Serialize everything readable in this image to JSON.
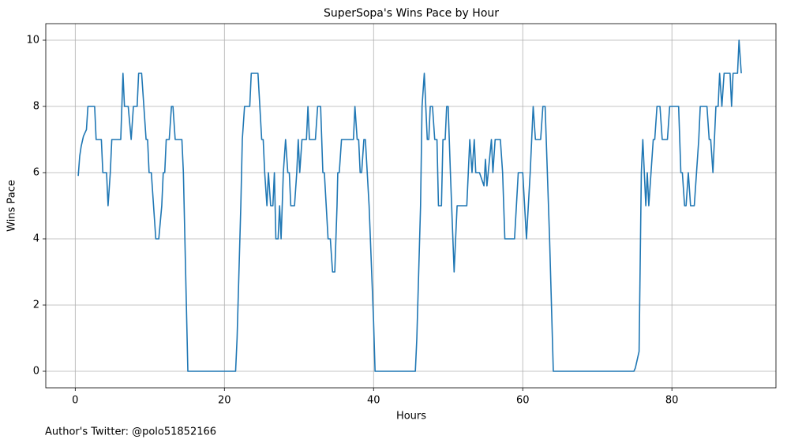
{
  "chart_data": {
    "type": "line",
    "title": "SuperSopa's Wins Pace by Hour",
    "xlabel": "Hours",
    "ylabel": "Wins Pace",
    "annotation": "Author's Twitter: @polo51852166",
    "color": "#1f77b4",
    "grid": true,
    "xlim": [
      -3.95,
      93.95
    ],
    "ylim": [
      -0.5,
      10.5
    ],
    "xticks": [
      0,
      20,
      40,
      60,
      80
    ],
    "yticks": [
      0,
      2,
      4,
      6,
      8,
      10
    ],
    "x": [
      0.4,
      0.6,
      0.8,
      1.1,
      1.5,
      1.7,
      2.6,
      2.8,
      3.5,
      3.7,
      4.2,
      4.4,
      4.7,
      4.9,
      6.1,
      6.4,
      6.6,
      7.1,
      7.5,
      7.8,
      8.3,
      8.5,
      8.9,
      9.5,
      9.7,
      9.9,
      10.2,
      10.8,
      11.2,
      11.6,
      11.8,
      12.0,
      12.2,
      12.6,
      12.9,
      13.1,
      13.4,
      14.3,
      14.5,
      15.1,
      21.5,
      21.7,
      22.2,
      22.4,
      22.7,
      23.4,
      23.6,
      24.5,
      25.0,
      25.2,
      25.4,
      25.7,
      25.9,
      26.2,
      26.5,
      26.7,
      26.9,
      27.2,
      27.4,
      27.6,
      27.9,
      28.2,
      28.5,
      28.7,
      28.9,
      29.4,
      29.7,
      29.9,
      30.1,
      30.4,
      31.0,
      31.2,
      31.4,
      32.2,
      32.5,
      32.9,
      33.2,
      33.4,
      33.9,
      34.2,
      34.5,
      34.8,
      35.1,
      35.2,
      35.4,
      35.7,
      37.3,
      37.5,
      37.8,
      38.0,
      38.2,
      38.4,
      38.7,
      38.9,
      39.4,
      40.0,
      40.2,
      45.6,
      45.8,
      46.3,
      46.5,
      46.8,
      47.2,
      47.4,
      47.6,
      47.9,
      48.2,
      48.5,
      48.7,
      49.1,
      49.3,
      49.6,
      49.8,
      50.0,
      50.3,
      50.8,
      51.2,
      52.5,
      52.9,
      53.2,
      53.5,
      53.7,
      54.2,
      54.8,
      55.0,
      55.2,
      55.8,
      56.0,
      56.3,
      57.0,
      57.3,
      57.6,
      58.9,
      59.4,
      60.0,
      60.5,
      61.0,
      61.4,
      61.7,
      62.4,
      62.7,
      63.0,
      63.6,
      64.1,
      74.9,
      75.1,
      75.6,
      75.9,
      76.1,
      76.5,
      76.7,
      76.9,
      77.2,
      77.5,
      77.7,
      78.0,
      78.4,
      78.7,
      79.4,
      79.7,
      80.9,
      81.2,
      81.4,
      81.7,
      81.9,
      82.2,
      82.5,
      83.0,
      83.3,
      83.6,
      83.8,
      84.7,
      85.0,
      85.2,
      85.5,
      85.7,
      85.9,
      86.2,
      86.4,
      86.7,
      87.0,
      87.8,
      88.0,
      88.2,
      88.8,
      89.0,
      89.3
    ],
    "values": [
      5.9,
      6.5,
      6.8,
      7.1,
      7.3,
      8,
      8,
      7,
      7,
      6,
      6,
      5,
      6,
      7,
      7,
      9,
      8,
      8,
      7,
      8,
      8,
      9,
      9,
      7,
      7,
      6,
      6,
      4,
      4,
      5,
      6,
      6,
      7,
      7,
      8,
      8,
      7,
      7,
      6,
      0,
      0,
      1,
      5,
      7,
      8,
      8,
      9,
      9,
      7,
      7,
      6,
      5,
      6,
      5,
      5,
      6,
      4,
      4,
      5,
      4,
      6,
      7,
      6,
      6,
      5,
      5,
      6,
      7,
      6,
      7,
      7,
      8,
      7,
      7,
      8,
      8,
      6,
      6,
      4,
      4,
      3,
      3,
      5,
      6,
      6,
      7,
      7,
      8,
      7,
      7,
      6,
      6,
      7,
      7,
      5,
      1.5,
      0,
      0,
      1,
      5,
      8,
      9,
      7,
      7,
      8,
      8,
      7,
      7,
      5,
      5,
      7,
      7,
      8,
      8,
      6,
      3,
      5,
      5,
      7,
      6,
      7,
      6,
      6,
      5.6,
      6.4,
      5.6,
      7,
      6,
      7,
      7,
      6,
      4,
      4,
      6,
      6,
      4,
      6,
      8,
      7,
      7,
      8,
      8,
      4,
      0,
      0,
      0.1,
      0.6,
      6,
      7,
      5,
      6,
      5,
      6,
      7,
      7,
      8,
      8,
      7,
      7,
      8,
      8,
      6,
      6,
      5,
      5,
      6,
      5,
      5,
      6,
      7,
      8,
      8,
      7,
      7,
      6,
      7,
      8,
      8,
      9,
      8,
      9,
      9,
      8,
      9,
      9,
      10,
      9
    ]
  }
}
